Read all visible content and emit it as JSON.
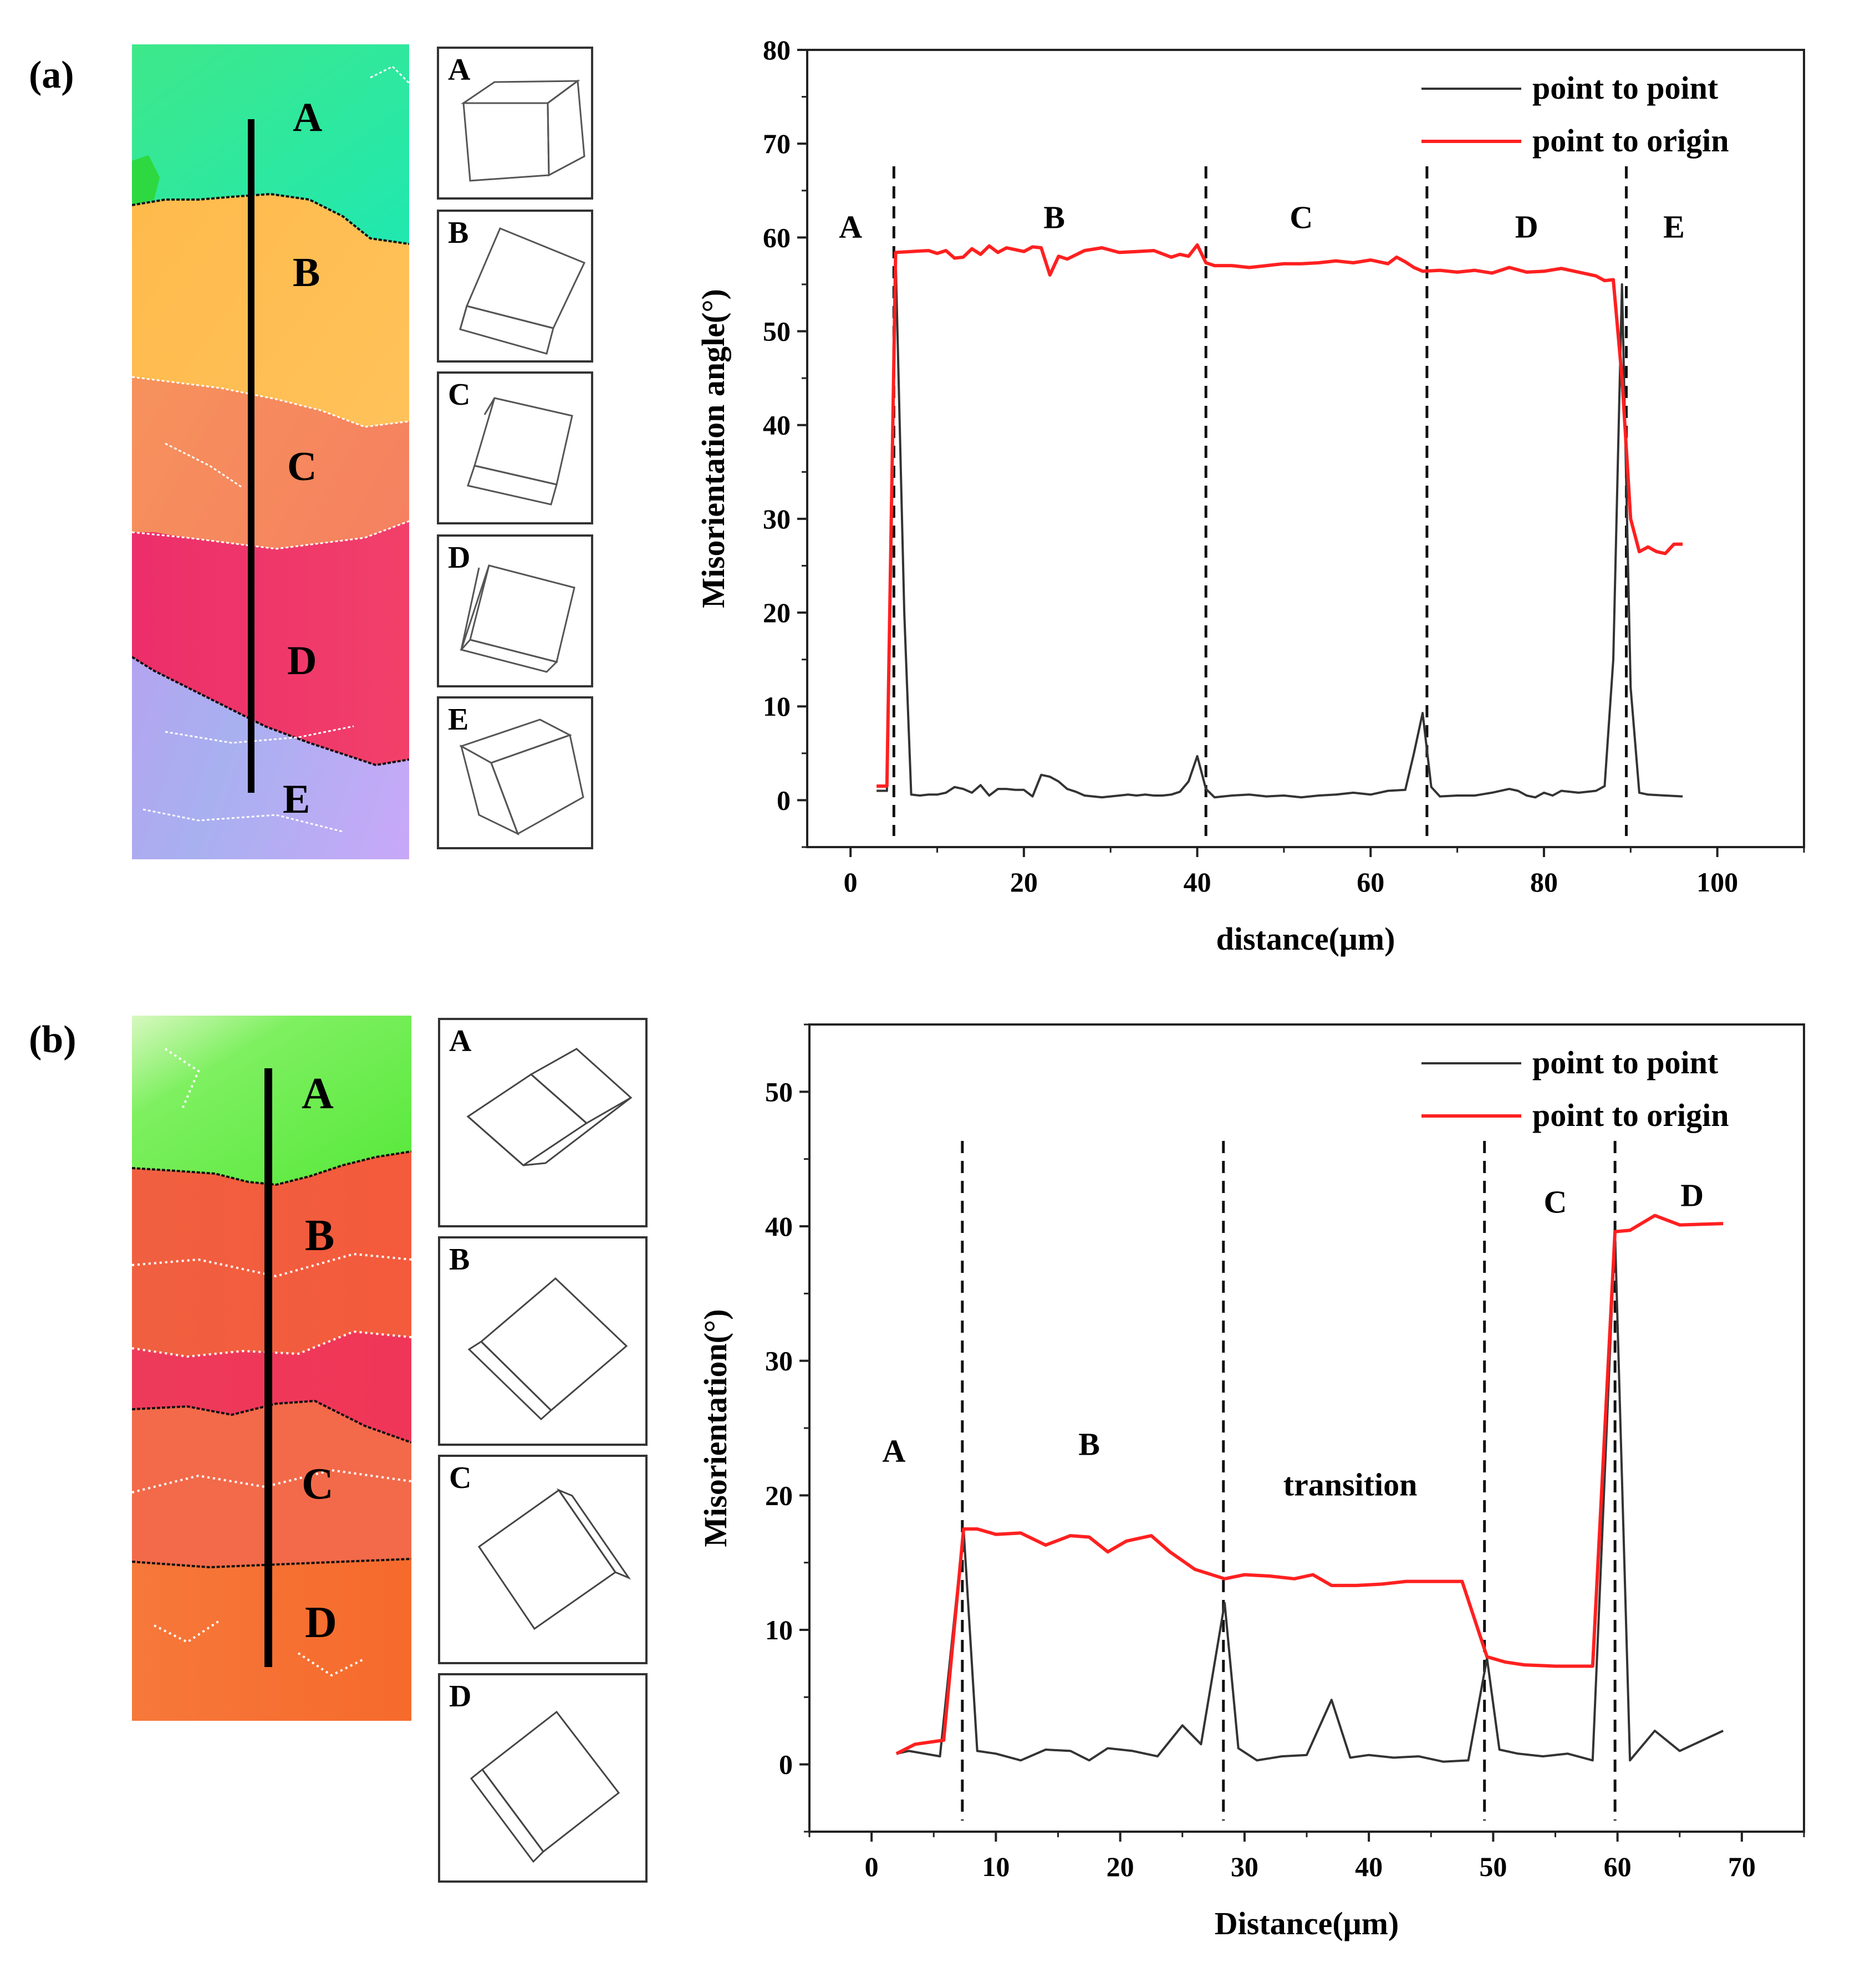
{
  "panels": [
    {
      "label": "(a)",
      "map_letters": [
        "A",
        "B",
        "C",
        "D",
        "E"
      ],
      "cube_letters": [
        "A",
        "B",
        "C",
        "D",
        "E"
      ]
    },
    {
      "label": "(b)",
      "map_letters": [
        "A",
        "B",
        "C",
        "D"
      ],
      "cube_letters": [
        "A",
        "B",
        "C",
        "D"
      ]
    }
  ],
  "colors": {
    "point_to_point": "#333333",
    "point_to_origin": "#ff2020"
  },
  "chart_data": [
    {
      "type": "line",
      "title": "",
      "xlabel": "distance(μm)",
      "ylabel": "Misorientation angle(°)",
      "xlim": [
        -5,
        110
      ],
      "ylim": [
        -5,
        80
      ],
      "xticks": [
        0,
        20,
        40,
        60,
        80,
        100
      ],
      "yticks": [
        0,
        10,
        20,
        30,
        40,
        50,
        60,
        70,
        80
      ],
      "legend": "top-right",
      "grid": false,
      "boundaries": [
        5,
        41,
        66.5,
        89.5
      ],
      "region_labels": [
        {
          "text": "A",
          "x": 0,
          "y": 60
        },
        {
          "text": "B",
          "x": 23.5,
          "y": 61
        },
        {
          "text": "C",
          "x": 52,
          "y": 61
        },
        {
          "text": "D",
          "x": 78,
          "y": 60
        },
        {
          "text": "E",
          "x": 95,
          "y": 60
        }
      ],
      "series": [
        {
          "name": "point to point",
          "color": "#333333",
          "x": [
            3,
            4.2,
            5.2,
            6.2,
            7,
            8,
            9,
            10,
            11,
            12,
            13,
            14,
            15,
            16,
            17,
            18,
            19,
            20,
            21,
            22,
            23,
            24,
            25,
            26,
            27,
            28,
            29,
            30,
            31,
            32,
            33,
            34,
            35,
            36,
            37,
            38,
            39,
            40,
            41,
            42,
            43,
            44,
            46,
            48,
            50,
            52,
            54,
            56,
            58,
            60,
            62,
            64,
            65,
            66,
            67,
            68,
            70,
            72,
            74,
            76,
            77,
            78,
            79,
            80,
            81,
            82,
            84,
            86,
            87,
            88,
            89,
            90,
            91,
            92,
            94,
            96
          ],
          "y": [
            1,
            1,
            58,
            20,
            0.6,
            0.5,
            0.6,
            0.6,
            0.8,
            1.4,
            1.2,
            0.8,
            1.6,
            0.5,
            1.2,
            1.2,
            1.1,
            1.1,
            0.4,
            2.7,
            2.5,
            2,
            1.2,
            0.9,
            0.5,
            0.4,
            0.3,
            0.4,
            0.5,
            0.6,
            0.5,
            0.6,
            0.5,
            0.5,
            0.6,
            0.9,
            2,
            4.7,
            1.2,
            0.3,
            0.4,
            0.5,
            0.6,
            0.4,
            0.5,
            0.3,
            0.5,
            0.6,
            0.8,
            0.6,
            1.0,
            1.1,
            5,
            9.3,
            1.4,
            0.4,
            0.5,
            0.5,
            0.8,
            1.2,
            1.0,
            0.5,
            0.3,
            0.8,
            0.5,
            1.0,
            0.8,
            1.0,
            1.5,
            15,
            55,
            12,
            0.8,
            0.6,
            0.5,
            0.4
          ]
        },
        {
          "name": "point to origin",
          "color": "#ff2020",
          "x": [
            3,
            4.2,
            5.2,
            7,
            9,
            10,
            11,
            12,
            13,
            14,
            15,
            16,
            17,
            18,
            19,
            20,
            21,
            22,
            23,
            24,
            25,
            27,
            29,
            31,
            33,
            35,
            37,
            38,
            39,
            40,
            41,
            42,
            44,
            46,
            48,
            50,
            52,
            54,
            56,
            58,
            60,
            62,
            63,
            64,
            65,
            66,
            68,
            70,
            72,
            74,
            76,
            78,
            80,
            82,
            84,
            86,
            87,
            88,
            89,
            90,
            91,
            92,
            93,
            94,
            95,
            96
          ],
          "y": [
            1.5,
            1.5,
            58.4,
            58.5,
            58.6,
            58.3,
            58.6,
            57.8,
            57.9,
            58.8,
            58.2,
            59.1,
            58.4,
            58.9,
            58.7,
            58.5,
            59,
            58.9,
            56,
            58,
            57.7,
            58.6,
            58.9,
            58.4,
            58.5,
            58.6,
            57.9,
            58.2,
            58,
            59.2,
            57.3,
            57,
            57,
            56.8,
            57,
            57.2,
            57.2,
            57.3,
            57.5,
            57.3,
            57.6,
            57.2,
            57.9,
            57.4,
            56.8,
            56.4,
            56.5,
            56.3,
            56.5,
            56.2,
            56.8,
            56.3,
            56.4,
            56.7,
            56.3,
            55.9,
            55.4,
            55.5,
            45,
            30,
            26.5,
            27,
            26.5,
            26.3,
            27.3,
            27.3
          ]
        }
      ]
    },
    {
      "type": "line",
      "title": "",
      "xlabel": "Distance(μm)",
      "ylabel": "Misorientation(°)",
      "xlim": [
        -5,
        75
      ],
      "ylim": [
        -5,
        55
      ],
      "xticks": [
        0,
        10,
        20,
        30,
        40,
        50,
        60,
        70
      ],
      "yticks": [
        0,
        10,
        20,
        30,
        40,
        50
      ],
      "legend": "top-right",
      "grid": false,
      "boundaries": [
        7.3,
        28.3,
        49.3,
        59.8
      ],
      "region_labels": [
        {
          "text": "A",
          "x": 1.8,
          "y": 22.5
        },
        {
          "text": "B",
          "x": 17.5,
          "y": 23
        },
        {
          "text": "transition",
          "x": 38.5,
          "y": 20
        },
        {
          "text": "C",
          "x": 55,
          "y": 41
        },
        {
          "text": "D",
          "x": 66,
          "y": 41.5
        }
      ],
      "series": [
        {
          "name": "point to point",
          "color": "#333333",
          "x": [
            2,
            3,
            5.5,
            7.4,
            8.5,
            10,
            12,
            14,
            16,
            17.5,
            19,
            21,
            23,
            25,
            26.5,
            28.4,
            29.5,
            31,
            33,
            35,
            37,
            38.5,
            40,
            42,
            44,
            46,
            48,
            49.5,
            50.5,
            52,
            54,
            56,
            58,
            59.8,
            61,
            63,
            65,
            68.5
          ],
          "y": [
            0.8,
            1,
            0.6,
            17.5,
            1,
            0.8,
            0.3,
            1.1,
            1,
            0.3,
            1.2,
            1,
            0.6,
            2.9,
            1.5,
            12,
            1.2,
            0.3,
            0.6,
            0.7,
            4.8,
            0.5,
            0.7,
            0.5,
            0.6,
            0.2,
            0.3,
            7.9,
            1.1,
            0.8,
            0.6,
            0.8,
            0.3,
            39.5,
            0.3,
            2.5,
            1,
            2.5
          ]
        },
        {
          "name": "point to origin",
          "color": "#ff2020",
          "x": [
            2,
            3.5,
            5.8,
            7.4,
            8.5,
            10,
            12,
            14,
            16,
            17.5,
            19,
            20.5,
            22.5,
            24,
            26,
            28.4,
            30,
            32,
            34,
            35.5,
            37,
            39,
            41,
            43,
            45,
            47.5,
            49.5,
            51,
            52.5,
            55,
            58,
            59.8,
            61,
            63,
            65,
            68.5
          ],
          "y": [
            0.8,
            1.5,
            1.8,
            17.5,
            17.5,
            17.1,
            17.2,
            16.3,
            17,
            16.9,
            15.8,
            16.6,
            17,
            15.8,
            14.5,
            13.8,
            14.1,
            14,
            13.8,
            14.1,
            13.3,
            13.3,
            13.4,
            13.6,
            13.6,
            13.6,
            8,
            7.6,
            7.4,
            7.3,
            7.3,
            39.6,
            39.7,
            40.8,
            40.1,
            40.2
          ]
        }
      ]
    }
  ]
}
